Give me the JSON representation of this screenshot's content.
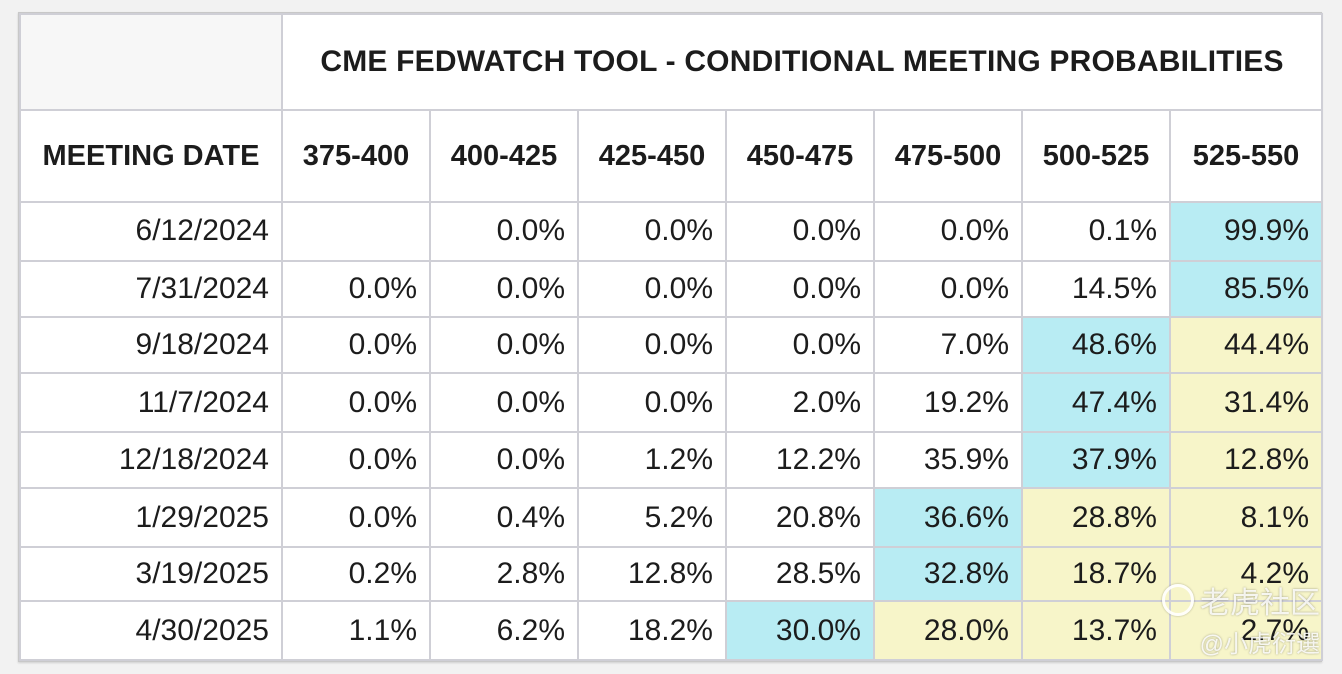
{
  "chart_data": {
    "type": "table",
    "title": "CME FEDWATCH TOOL - CONDITIONAL MEETING PROBABILITIES",
    "row_header": "MEETING DATE",
    "columns": [
      "375-400",
      "400-425",
      "425-450",
      "450-475",
      "475-500",
      "500-525",
      "525-550"
    ],
    "rows": [
      {
        "date": "6/12/2024",
        "values": [
          "",
          "0.0%",
          "0.0%",
          "0.0%",
          "0.0%",
          "0.1%",
          "99.9%"
        ]
      },
      {
        "date": "7/31/2024",
        "values": [
          "0.0%",
          "0.0%",
          "0.0%",
          "0.0%",
          "0.0%",
          "14.5%",
          "85.5%"
        ]
      },
      {
        "date": "9/18/2024",
        "values": [
          "0.0%",
          "0.0%",
          "0.0%",
          "0.0%",
          "7.0%",
          "48.6%",
          "44.4%"
        ]
      },
      {
        "date": "11/7/2024",
        "values": [
          "0.0%",
          "0.0%",
          "0.0%",
          "2.0%",
          "19.2%",
          "47.4%",
          "31.4%"
        ]
      },
      {
        "date": "12/18/2024",
        "values": [
          "0.0%",
          "0.0%",
          "1.2%",
          "12.2%",
          "35.9%",
          "37.9%",
          "12.8%"
        ]
      },
      {
        "date": "1/29/2025",
        "values": [
          "0.0%",
          "0.4%",
          "5.2%",
          "20.8%",
          "36.6%",
          "28.8%",
          "8.1%"
        ]
      },
      {
        "date": "3/19/2025",
        "values": [
          "0.2%",
          "2.8%",
          "12.8%",
          "28.5%",
          "32.8%",
          "18.7%",
          "4.2%"
        ]
      },
      {
        "date": "4/30/2025",
        "values": [
          "1.1%",
          "6.2%",
          "18.2%",
          "30.0%",
          "28.0%",
          "13.7%",
          "2.7%"
        ]
      }
    ],
    "highlight_max_col": [
      6,
      6,
      5,
      5,
      5,
      4,
      4,
      3
    ],
    "colors": {
      "max_cell": "#b8ecf3",
      "above_max_cell": "#f7f5c9",
      "grid": "#cfcfd6"
    }
  },
  "watermark": {
    "line1": "老虎社区",
    "line2": "@小虎衍選"
  }
}
